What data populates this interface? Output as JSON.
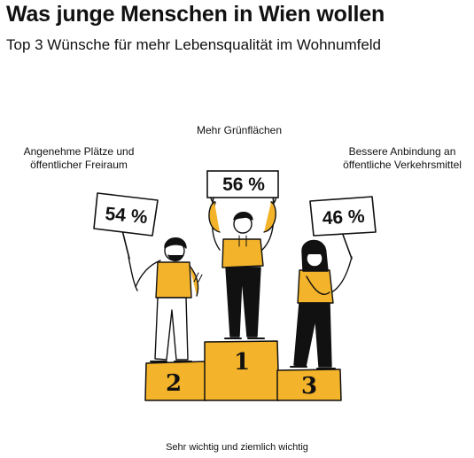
{
  "header": {
    "title": "Was junge Menschen in Wien wollen",
    "subtitle": "Top 3 Wünsche für mehr Lebensqualität im Wohnumfeld"
  },
  "footer": {
    "note": "Sehr wichtig und ziemlich wichtig"
  },
  "colors": {
    "accent": "#f3b32a",
    "ink": "#111111"
  },
  "chart_data": {
    "type": "bar",
    "style": "podium",
    "title": "Was junge Menschen in Wien wollen",
    "subtitle": "Top 3 Wünsche für mehr Lebensqualität im Wohnumfeld",
    "categories": [
      "Mehr Grünflächen",
      "Angenehme Plätze und öffentlicher Freiraum",
      "Bessere Anbindung an öffentliche Verkehrsmittel"
    ],
    "category_labels": [
      "Mehr Grünflächen",
      "Angenehme Plätze und\nöffentlicher Freiraum",
      "Bessere Anbindung an\nöffentliche Verkehrsmittel"
    ],
    "ranks": [
      1,
      2,
      3
    ],
    "rank_labels": [
      "1",
      "2",
      "3"
    ],
    "values": [
      56,
      54,
      46
    ],
    "value_labels": [
      "56 %",
      "54 %",
      "46 %"
    ],
    "unit": "%",
    "note": "Sehr wichtig und ziemlich wichtig"
  }
}
